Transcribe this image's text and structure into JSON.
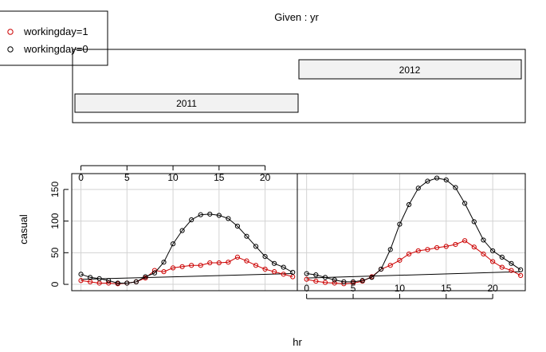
{
  "chart_data": {
    "type": "line",
    "title": "Given : yr",
    "xlabel": "hr",
    "ylabel": "casual",
    "panels": [
      "2011",
      "2012"
    ],
    "xlim": [
      -1,
      23.5
    ],
    "ylim": [
      -10,
      175
    ],
    "x_ticks": [
      0,
      5,
      10,
      15,
      20
    ],
    "y_ticks": [
      0,
      50,
      100,
      150
    ],
    "grid": true,
    "legend_position": "top-left",
    "legend": [
      {
        "label": "workingday=1",
        "color": "#cc0000"
      },
      {
        "label": "workingday=0",
        "color": "#000000"
      }
    ],
    "x": [
      0,
      1,
      2,
      3,
      4,
      5,
      6,
      7,
      8,
      9,
      10,
      11,
      12,
      13,
      14,
      15,
      16,
      17,
      18,
      19,
      20,
      21,
      22,
      23
    ],
    "series": [
      {
        "name": "workingday=1",
        "panel": "2011",
        "color": "#cc0000",
        "values": [
          6,
          4,
          2,
          2,
          1,
          2,
          4,
          10,
          22,
          20,
          26,
          28,
          30,
          30,
          34,
          34,
          35,
          43,
          37,
          30,
          24,
          20,
          16,
          12
        ]
      },
      {
        "name": "workingday=0",
        "panel": "2011",
        "color": "#000000",
        "values": [
          16,
          11,
          9,
          6,
          2,
          2,
          4,
          12,
          18,
          35,
          64,
          85,
          102,
          110,
          111,
          109,
          104,
          92,
          76,
          60,
          44,
          33,
          27,
          19
        ]
      },
      {
        "name": "workingday=1",
        "panel": "2012",
        "color": "#cc0000",
        "values": [
          8,
          5,
          3,
          2,
          1,
          2,
          5,
          12,
          24,
          30,
          38,
          48,
          53,
          55,
          58,
          60,
          63,
          69,
          59,
          48,
          36,
          27,
          22,
          14
        ]
      },
      {
        "name": "workingday=0",
        "panel": "2012",
        "color": "#000000",
        "values": [
          17,
          15,
          11,
          7,
          4,
          4,
          6,
          11,
          24,
          55,
          95,
          126,
          152,
          163,
          168,
          165,
          153,
          128,
          99,
          70,
          53,
          43,
          33,
          23
        ]
      }
    ],
    "trend_lines": [
      {
        "panel": "2011",
        "from": [
          0,
          8
        ],
        "to": [
          23,
          17
        ]
      },
      {
        "panel": "2012",
        "from": [
          0,
          10
        ],
        "to": [
          23,
          20
        ]
      }
    ]
  }
}
